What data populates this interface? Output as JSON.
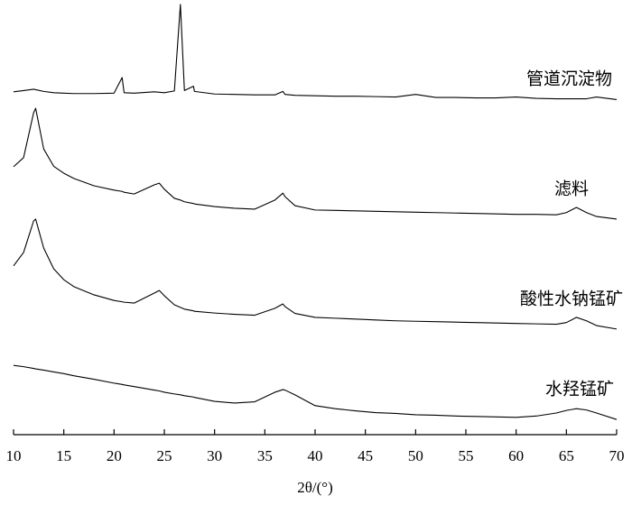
{
  "chart_data": {
    "type": "line",
    "xlabel": "2θ/(°)",
    "x": [
      10,
      11,
      12,
      12.2,
      13,
      14,
      15,
      16,
      18,
      20,
      20.8,
      21,
      22,
      24,
      24.5,
      25,
      26,
      26.6,
      27,
      27.9,
      28,
      30,
      32,
      34,
      36,
      36.8,
      37,
      38,
      40,
      42,
      44,
      46,
      48,
      50,
      52,
      54,
      56,
      58,
      60,
      62,
      64,
      65,
      66,
      67,
      68,
      70
    ],
    "series": [
      {
        "name": "管道沉淀物",
        "color": "#000000",
        "values": [
          79.2,
          79.5,
          79.8,
          79.7,
          79.3,
          79,
          78.9,
          78.8,
          78.8,
          78.9,
          82.5,
          79,
          78.9,
          79.2,
          79.1,
          79,
          79.4,
          99.4,
          79.5,
          80.5,
          79.3,
          78.7,
          78.6,
          78.5,
          78.5,
          79.3,
          78.6,
          78.4,
          78.3,
          78.2,
          78.2,
          78.1,
          78,
          78.6,
          77.9,
          77.9,
          77.8,
          77.8,
          78,
          77.7,
          77.6,
          77.6,
          77.6,
          77.6,
          78,
          77.4
        ]
      },
      {
        "name": "滤料",
        "color": "#000000",
        "values": [
          61.9,
          64,
          74.4,
          75.4,
          66,
          62,
          60.4,
          59.2,
          57.5,
          56.5,
          56.2,
          56,
          55.6,
          57.7,
          58.1,
          56.7,
          54.6,
          54.2,
          53.8,
          53.4,
          53.3,
          52.7,
          52.3,
          52.1,
          54.2,
          55.8,
          55,
          52.9,
          51.9,
          51.8,
          51.7,
          51.6,
          51.5,
          51.4,
          51.3,
          51.2,
          51.1,
          51,
          50.9,
          50.9,
          50.8,
          51.3,
          52.5,
          51.3,
          50.4,
          49.8
        ]
      },
      {
        "name": "酸性水钠锰矿",
        "color": "#000000",
        "values": [
          39,
          42.1,
          49.4,
          49.8,
          43.1,
          38.3,
          35.8,
          34.2,
          32.3,
          31,
          30.7,
          30.6,
          30.4,
          32.7,
          33.3,
          32.1,
          30,
          29.4,
          29,
          28.6,
          28.5,
          28.1,
          27.8,
          27.6,
          29.2,
          30.2,
          29.6,
          28,
          27.1,
          26.9,
          26.7,
          26.5,
          26.3,
          26.2,
          26.1,
          26,
          25.9,
          25.8,
          25.7,
          25.6,
          25.5,
          25.9,
          27.1,
          26.3,
          25.2,
          24.4
        ]
      },
      {
        "name": "水羟锰矿",
        "color": "#000000",
        "values": [
          16,
          15.7,
          15.3,
          15.2,
          14.9,
          14.5,
          14.1,
          13.6,
          12.8,
          11.9,
          11.6,
          11.5,
          11.1,
          10.3,
          10.1,
          9.8,
          9.4,
          9.2,
          9,
          8.7,
          8.6,
          7.7,
          7.3,
          7.6,
          9.8,
          10.4,
          10.3,
          9.2,
          6.7,
          6,
          5.5,
          5.1,
          4.9,
          4.6,
          4.5,
          4.3,
          4.2,
          4.1,
          4,
          4.3,
          5,
          5.6,
          6,
          5.7,
          5,
          3.5
        ]
      }
    ],
    "xlim": [
      10,
      70
    ],
    "xticks": [
      10,
      15,
      20,
      25,
      30,
      35,
      40,
      45,
      50,
      55,
      60,
      65,
      70
    ],
    "ylim": [
      0,
      100
    ],
    "grid": false
  }
}
